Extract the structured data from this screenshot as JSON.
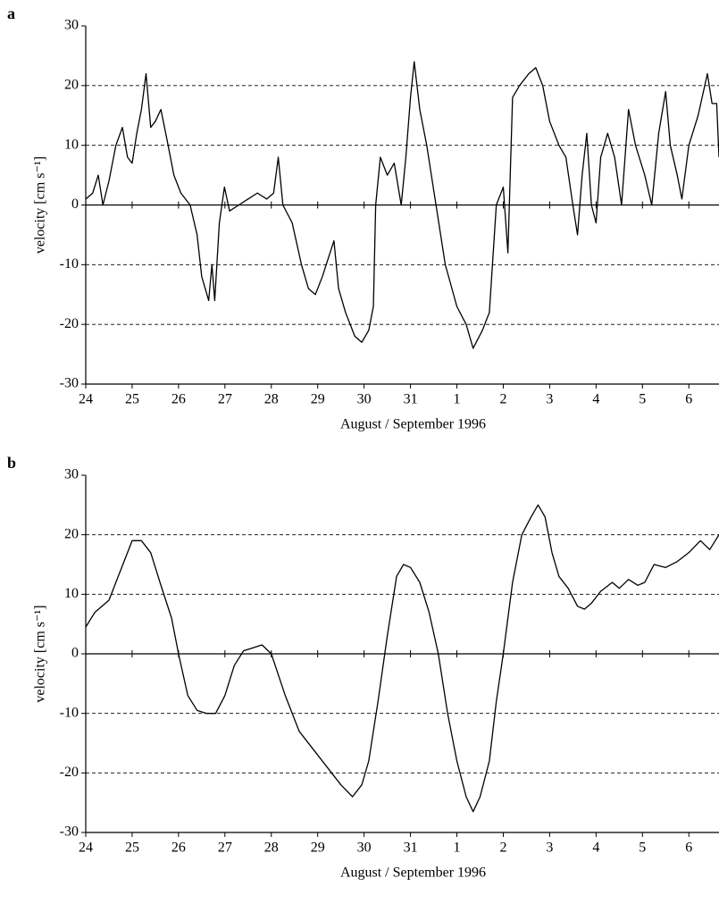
{
  "chart_data": [
    {
      "type": "line",
      "label": "a",
      "xlabel": "August / September 1996",
      "ylabel": "velocity [cm s⁻¹]",
      "x": [
        0,
        0.15,
        0.27,
        0.37,
        0.5,
        0.65,
        0.79,
        0.9,
        1.0,
        1.1,
        1.2,
        1.3,
        1.4,
        1.5,
        1.62,
        1.75,
        1.9,
        2.05,
        2.25,
        2.4,
        2.5,
        2.65,
        2.72,
        2.78,
        2.88,
        2.99,
        3.1,
        3.3,
        3.5,
        3.7,
        3.9,
        4.05,
        4.15,
        4.25,
        4.45,
        4.65,
        4.8,
        4.95,
        5.1,
        5.35,
        5.45,
        5.6,
        5.8,
        5.95,
        6.1,
        6.2,
        6.25,
        6.35,
        6.5,
        6.65,
        6.8,
        6.9,
        7.0,
        7.08,
        7.2,
        7.35,
        7.55,
        7.75,
        8.0,
        8.2,
        8.35,
        8.55,
        8.7,
        8.85,
        9.0,
        9.1,
        9.2,
        9.35,
        9.55,
        9.7,
        9.85,
        10.0,
        10.2,
        10.35,
        10.5,
        10.6,
        10.7,
        10.8,
        10.9,
        11.0,
        11.1,
        11.25,
        11.4,
        11.55,
        11.7,
        11.85,
        12.05,
        12.2,
        12.35,
        12.5,
        12.6,
        12.75,
        12.85,
        13.0,
        13.2,
        13.4,
        13.5,
        13.6,
        13.65
      ],
      "series": [
        {
          "color": "#000000",
          "values": [
            1,
            2,
            5,
            0,
            4,
            10,
            13,
            8,
            7,
            12,
            16,
            22,
            13,
            14,
            16,
            11,
            5,
            2,
            0,
            -5,
            -12,
            -16,
            -10,
            -16,
            -3,
            3,
            -1,
            0,
            1,
            2,
            1,
            2,
            8,
            0,
            -3,
            -10,
            -14,
            -15,
            -12,
            -6,
            -14,
            -18,
            -22,
            -23,
            -21,
            -17,
            0,
            8,
            5,
            7,
            0,
            8,
            18,
            24,
            16,
            10,
            0,
            -10,
            -17,
            -20,
            -24,
            -21,
            -18,
            0,
            3,
            -8,
            18,
            20,
            22,
            23,
            20,
            14,
            10,
            8,
            0,
            -5,
            5,
            12,
            0,
            -3,
            8,
            12,
            8,
            0,
            16,
            10,
            5,
            0,
            12,
            19,
            10,
            5,
            1,
            10,
            15,
            22,
            17,
            17,
            8
          ]
        }
      ],
      "xlim": [
        0,
        13.65
      ],
      "xticks": [
        {
          "value": 0,
          "label": "24"
        },
        {
          "value": 1,
          "label": "25"
        },
        {
          "value": 2,
          "label": "26"
        },
        {
          "value": 3,
          "label": "27"
        },
        {
          "value": 4,
          "label": "28"
        },
        {
          "value": 5,
          "label": "29"
        },
        {
          "value": 6,
          "label": "30"
        },
        {
          "value": 7,
          "label": "31"
        },
        {
          "value": 8,
          "label": "1"
        },
        {
          "value": 9,
          "label": "2"
        },
        {
          "value": 10,
          "label": "3"
        },
        {
          "value": 11,
          "label": "4"
        },
        {
          "value": 12,
          "label": "5"
        },
        {
          "value": 13,
          "label": "6"
        }
      ],
      "ylim": [
        -30,
        30
      ],
      "yticks": [
        -30,
        -20,
        -10,
        0,
        10,
        20,
        30
      ],
      "grid": true
    },
    {
      "type": "line",
      "label": "b",
      "xlabel": "August / September 1996",
      "ylabel": "velocity [cm s⁻¹]",
      "x": [
        0,
        0.2,
        0.5,
        0.75,
        1.0,
        1.2,
        1.4,
        1.6,
        1.85,
        2.0,
        2.2,
        2.4,
        2.6,
        2.8,
        3.0,
        3.2,
        3.4,
        3.6,
        3.8,
        4.0,
        4.3,
        4.6,
        4.9,
        5.2,
        5.5,
        5.75,
        5.95,
        6.1,
        6.3,
        6.5,
        6.7,
        6.85,
        7.0,
        7.2,
        7.4,
        7.6,
        7.8,
        8.0,
        8.2,
        8.35,
        8.5,
        8.7,
        8.85,
        9.0,
        9.2,
        9.4,
        9.6,
        9.75,
        9.9,
        10.05,
        10.2,
        10.4,
        10.6,
        10.75,
        10.9,
        11.1,
        11.35,
        11.5,
        11.7,
        11.9,
        12.05,
        12.25,
        12.5,
        12.75,
        13.0,
        13.25,
        13.45,
        13.65
      ],
      "series": [
        {
          "color": "#000000",
          "values": [
            4.5,
            7,
            9,
            14,
            19,
            19,
            17,
            12,
            6,
            0,
            -7,
            -9.5,
            -10,
            -10,
            -7,
            -2,
            0.5,
            1,
            1.5,
            0,
            -7,
            -13,
            -16,
            -19,
            -22,
            -24,
            -22,
            -18,
            -8,
            3,
            13,
            15,
            14.5,
            12,
            7,
            0,
            -10,
            -18,
            -24,
            -26.5,
            -24,
            -18,
            -8,
            0,
            12,
            20,
            23,
            25,
            23,
            17,
            13,
            11,
            8,
            7.5,
            8.5,
            10.5,
            12,
            11,
            12.5,
            11.5,
            12,
            15,
            14.5,
            15.5,
            17,
            19,
            17.5,
            20
          ]
        }
      ],
      "xlim": [
        0,
        13.65
      ],
      "xticks": [
        {
          "value": 0,
          "label": "24"
        },
        {
          "value": 1,
          "label": "25"
        },
        {
          "value": 2,
          "label": "26"
        },
        {
          "value": 3,
          "label": "27"
        },
        {
          "value": 4,
          "label": "28"
        },
        {
          "value": 5,
          "label": "29"
        },
        {
          "value": 6,
          "label": "30"
        },
        {
          "value": 7,
          "label": "31"
        },
        {
          "value": 8,
          "label": "1"
        },
        {
          "value": 9,
          "label": "2"
        },
        {
          "value": 10,
          "label": "3"
        },
        {
          "value": 11,
          "label": "4"
        },
        {
          "value": 12,
          "label": "5"
        },
        {
          "value": 13,
          "label": "6"
        }
      ],
      "ylim": [
        -30,
        30
      ],
      "yticks": [
        -30,
        -20,
        -10,
        0,
        10,
        20,
        30
      ],
      "grid": true
    }
  ]
}
